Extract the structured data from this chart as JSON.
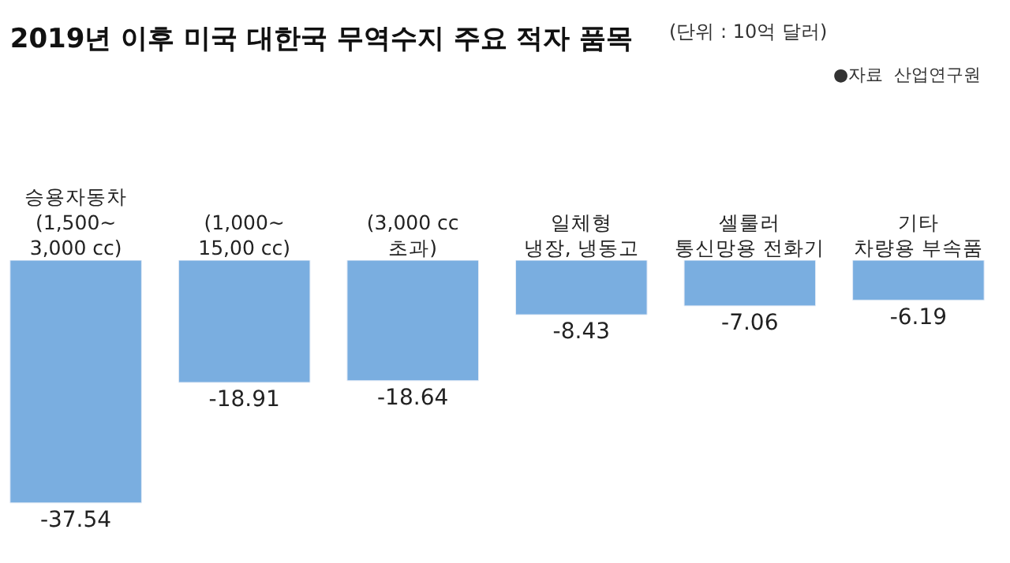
{
  "chart_data": {
    "type": "bar",
    "title": "2019년 이후 미국 대한국 무역수지 주요 적자 품목",
    "subtitle": "(단위 : 10억 달러)",
    "annotations": [
      "●자료  산업연구원"
    ],
    "categories": [
      "승용자동차\n(1,500~\n3,000 cc)",
      "(1,000~\n15,00 cc)",
      "(3,000 cc\n초과)",
      "일체형\n냉장, 냉동고",
      "셀룰러\n통신망용 전화기",
      "기타\n차량용 부속품"
    ],
    "values": [
      -37.54,
      -18.91,
      -18.64,
      -8.43,
      -7.06,
      -6.19
    ],
    "color": "#7aaee0",
    "data_labels": true
  }
}
